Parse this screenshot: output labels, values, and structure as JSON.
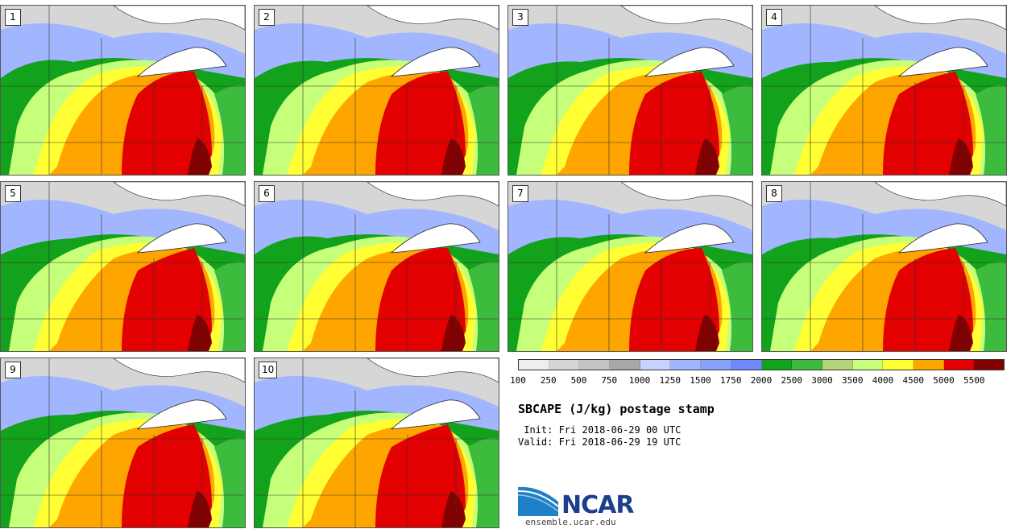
{
  "panels": [
    {
      "label": "1"
    },
    {
      "label": "2"
    },
    {
      "label": "3"
    },
    {
      "label": "4"
    },
    {
      "label": "5"
    },
    {
      "label": "6"
    },
    {
      "label": "7"
    },
    {
      "label": "8"
    },
    {
      "label": "9"
    },
    {
      "label": "10"
    }
  ],
  "colorbar": {
    "colors": [
      "#eeeeee",
      "#d6d6d6",
      "#c4c4c4",
      "#a8a8a8",
      "#c6d2ff",
      "#a2b6ff",
      "#8aa2ff",
      "#6f88ff",
      "#13a21c",
      "#3cbb3c",
      "#b4d27a",
      "#c6ff7a",
      "#ffff33",
      "#ffa500",
      "#e30000",
      "#820000"
    ],
    "ticks": [
      "100",
      "250",
      "500",
      "750",
      "1000",
      "1250",
      "1500",
      "1750",
      "2000",
      "2500",
      "3000",
      "3500",
      "4000",
      "4500",
      "5000",
      "5500"
    ]
  },
  "title": "SBCAPE (J/kg) postage stamp",
  "init_text": " Init: Fri 2018-06-29 00 UTC",
  "valid_text": "Valid: Fri 2018-06-29 19 UTC",
  "logo": {
    "name": "NCAR",
    "url": "ensemble.ucar.edu"
  }
}
